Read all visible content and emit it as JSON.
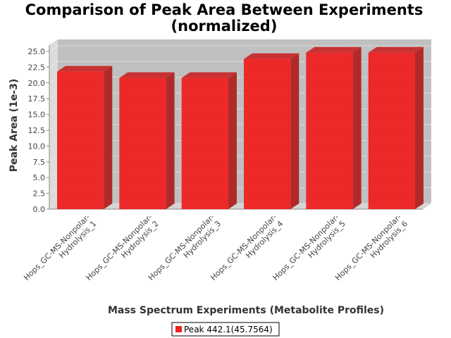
{
  "chart_data": {
    "type": "bar",
    "title_line1": "Comparison of Peak Area Between Experiments",
    "title_line2": "(normalized)",
    "xlabel": "Mass Spectrum Experiments (Metabolite Profiles)",
    "ylabel": "Peak Area (1e-3)",
    "ylim": [
      0,
      26
    ],
    "yticks": [
      "0.0",
      "2.5",
      "5.0",
      "7.5",
      "10.0",
      "12.5",
      "15.0",
      "17.5",
      "20.0",
      "22.5",
      "25.0"
    ],
    "categories": [
      [
        "Hops_GC-MS-Nonpolar-",
        "Hydrolysis_1"
      ],
      [
        "Hops_GC-MS-Nonpolar-",
        "Hydrolysis_2"
      ],
      [
        "Hops_GC-MS-Nonpolar-",
        "Hydrolysis_3"
      ],
      [
        "Hops_GC-MS-Nonpolar-",
        "Hydrolysis_4"
      ],
      [
        "Hops_GC-MS-Nonpolar-",
        "Hydrolysis_5"
      ],
      [
        "Hops_GC-MS-Nonpolar-",
        "Hydrolysis_6"
      ]
    ],
    "series": [
      {
        "name": "Peak 442.1(45.7564)",
        "color": "#ee2020",
        "values": [
          21.8,
          20.8,
          20.8,
          23.8,
          24.8,
          24.8
        ]
      }
    ],
    "grid": true,
    "legend_position": "bottom"
  }
}
